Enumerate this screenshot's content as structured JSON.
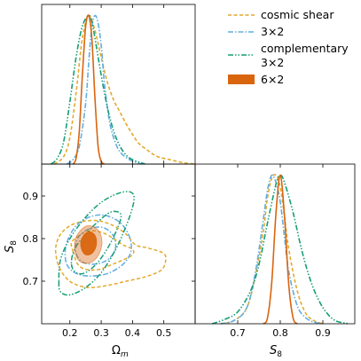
{
  "chart_data": {
    "type": "corner",
    "legend_position": "top-right",
    "legend": [
      {
        "label": "cosmic shear",
        "color": "#e3a92c",
        "style": "dashed"
      },
      {
        "label": "3×2",
        "color": "#62aee0",
        "style": "dashdot"
      },
      {
        "label": "complementary",
        "label2": "3×2",
        "color": "#159e76",
        "style": "dashdotdot"
      },
      {
        "label": "6×2",
        "color": "#d9650f",
        "style": "filled"
      }
    ],
    "axes": {
      "omega_m": {
        "label": "Ω",
        "sub": "m",
        "range": [
          0.11,
          0.6
        ],
        "ticks": [
          0.2,
          0.3,
          0.4,
          0.5
        ],
        "tick_labels": [
          "0.2",
          "0.3",
          "0.4",
          "0.5"
        ]
      },
      "s8": {
        "label": "S",
        "sub": "8",
        "range": [
          0.6,
          0.975
        ],
        "ticks": [
          0.7,
          0.8,
          0.9
        ],
        "tick_labels": [
          "0.7",
          "0.8",
          "0.9"
        ]
      }
    },
    "omega_m_posteriors": [
      {
        "name": "cosmic shear",
        "color": "#e3a92c",
        "dash": "4,2.5",
        "x": [
          0.15,
          0.18,
          0.2,
          0.22,
          0.24,
          0.26,
          0.28,
          0.3,
          0.32,
          0.34,
          0.36,
          0.38,
          0.4,
          0.42,
          0.45,
          0.48,
          0.52,
          0.56,
          0.6
        ],
        "y": [
          0.0,
          0.05,
          0.18,
          0.48,
          0.85,
          1.0,
          0.9,
          0.72,
          0.55,
          0.43,
          0.35,
          0.27,
          0.2,
          0.14,
          0.09,
          0.05,
          0.03,
          0.01,
          0.0
        ]
      },
      {
        "name": "3×2",
        "color": "#62aee0",
        "dash": "6,2,1.5,2",
        "x": [
          0.19,
          0.21,
          0.23,
          0.25,
          0.26,
          0.27,
          0.28,
          0.29,
          0.3,
          0.31,
          0.32,
          0.33,
          0.35,
          0.37,
          0.4,
          0.43
        ],
        "y": [
          0.0,
          0.03,
          0.12,
          0.4,
          0.68,
          0.92,
          1.0,
          0.95,
          0.8,
          0.55,
          0.38,
          0.25,
          0.12,
          0.06,
          0.02,
          0.0
        ]
      },
      {
        "name": "complementary 3×2",
        "color": "#159e76",
        "dash": "6,2,1.5,2,1.5,2",
        "x": [
          0.14,
          0.16,
          0.18,
          0.2,
          0.22,
          0.24,
          0.26,
          0.27,
          0.28,
          0.3,
          0.32,
          0.34,
          0.36,
          0.38,
          0.4,
          0.44
        ],
        "y": [
          0.0,
          0.04,
          0.15,
          0.42,
          0.72,
          0.93,
          1.0,
          0.96,
          0.85,
          0.6,
          0.38,
          0.22,
          0.12,
          0.06,
          0.03,
          0.0
        ]
      },
      {
        "name": "6×2",
        "color": "#d9650f",
        "dash": "",
        "x": [
          0.21,
          0.22,
          0.23,
          0.24,
          0.25,
          0.26,
          0.27,
          0.28,
          0.29,
          0.3,
          0.31
        ],
        "y": [
          0.0,
          0.04,
          0.22,
          0.6,
          0.92,
          1.0,
          0.85,
          0.45,
          0.12,
          0.02,
          0.0
        ]
      }
    ],
    "s8_posteriors": [
      {
        "name": "cosmic shear",
        "color": "#e3a92c",
        "dash": "4,2.5",
        "x": [
          0.66,
          0.69,
          0.72,
          0.74,
          0.76,
          0.77,
          0.78,
          0.79,
          0.8,
          0.81,
          0.82,
          0.84,
          0.86,
          0.88,
          0.9
        ],
        "y": [
          0.0,
          0.02,
          0.1,
          0.3,
          0.62,
          0.85,
          0.98,
          1.0,
          0.92,
          0.72,
          0.5,
          0.22,
          0.07,
          0.02,
          0.0
        ]
      },
      {
        "name": "3×2",
        "color": "#62aee0",
        "dash": "6,2,1.5,2",
        "x": [
          0.66,
          0.69,
          0.72,
          0.74,
          0.76,
          0.77,
          0.78,
          0.79,
          0.8,
          0.81,
          0.82,
          0.84,
          0.86,
          0.88,
          0.9
        ],
        "y": [
          0.0,
          0.02,
          0.1,
          0.32,
          0.7,
          0.9,
          1.0,
          0.95,
          0.82,
          0.58,
          0.35,
          0.12,
          0.04,
          0.01,
          0.0
        ]
      },
      {
        "name": "complementary 3×2",
        "color": "#159e76",
        "dash": "6,2,1.5,2,1.5,2",
        "x": [
          0.64,
          0.67,
          0.7,
          0.73,
          0.75,
          0.77,
          0.79,
          0.8,
          0.81,
          0.83,
          0.85,
          0.87,
          0.89,
          0.91,
          0.93,
          0.96
        ],
        "y": [
          0.0,
          0.03,
          0.08,
          0.22,
          0.4,
          0.68,
          0.94,
          1.0,
          0.95,
          0.75,
          0.5,
          0.3,
          0.16,
          0.07,
          0.02,
          0.0
        ]
      },
      {
        "name": "6×2",
        "color": "#d9650f",
        "dash": "",
        "x": [
          0.76,
          0.77,
          0.78,
          0.79,
          0.8,
          0.81,
          0.82,
          0.83,
          0.84
        ],
        "y": [
          0.0,
          0.04,
          0.28,
          0.75,
          1.0,
          0.72,
          0.26,
          0.04,
          0.0
        ]
      }
    ],
    "contours": [
      {
        "name": "cosmic shear",
        "level": "95%",
        "color": "#e3a92c",
        "dash": "4,2.5",
        "fill": false,
        "points": [
          [
            0.16,
            0.745
          ],
          [
            0.18,
            0.715
          ],
          [
            0.21,
            0.695
          ],
          [
            0.26,
            0.685
          ],
          [
            0.32,
            0.69
          ],
          [
            0.38,
            0.7
          ],
          [
            0.44,
            0.71
          ],
          [
            0.49,
            0.725
          ],
          [
            0.505,
            0.745
          ],
          [
            0.5,
            0.765
          ],
          [
            0.45,
            0.778
          ],
          [
            0.41,
            0.785
          ],
          [
            0.38,
            0.81
          ],
          [
            0.34,
            0.83
          ],
          [
            0.29,
            0.842
          ],
          [
            0.24,
            0.84
          ],
          [
            0.2,
            0.83
          ],
          [
            0.17,
            0.81
          ],
          [
            0.155,
            0.78
          ]
        ]
      },
      {
        "name": "cosmic shear",
        "level": "68%",
        "color": "#e3a92c",
        "dash": "4,2.5",
        "fill": false,
        "points": [
          [
            0.21,
            0.77
          ],
          [
            0.225,
            0.74
          ],
          [
            0.25,
            0.728
          ],
          [
            0.29,
            0.727
          ],
          [
            0.33,
            0.738
          ],
          [
            0.37,
            0.75
          ],
          [
            0.4,
            0.762
          ],
          [
            0.4,
            0.775
          ],
          [
            0.37,
            0.785
          ],
          [
            0.34,
            0.8
          ],
          [
            0.3,
            0.815
          ],
          [
            0.26,
            0.818
          ],
          [
            0.225,
            0.805
          ],
          [
            0.205,
            0.79
          ]
        ]
      },
      {
        "name": "3×2",
        "level": "95%",
        "color": "#62aee0",
        "dash": "6,2,1.5,2",
        "fill": false,
        "points": [
          [
            0.19,
            0.74
          ],
          [
            0.215,
            0.72
          ],
          [
            0.26,
            0.712
          ],
          [
            0.32,
            0.718
          ],
          [
            0.37,
            0.74
          ],
          [
            0.395,
            0.77
          ],
          [
            0.39,
            0.805
          ],
          [
            0.36,
            0.838
          ],
          [
            0.31,
            0.855
          ],
          [
            0.26,
            0.85
          ],
          [
            0.22,
            0.83
          ],
          [
            0.195,
            0.8
          ],
          [
            0.185,
            0.77
          ]
        ]
      },
      {
        "name": "3×2",
        "level": "68%",
        "color": "#62aee0",
        "dash": "6,2,1.5,2",
        "fill": false,
        "points": [
          [
            0.22,
            0.765
          ],
          [
            0.24,
            0.745
          ],
          [
            0.28,
            0.74
          ],
          [
            0.32,
            0.75
          ],
          [
            0.345,
            0.775
          ],
          [
            0.34,
            0.805
          ],
          [
            0.31,
            0.825
          ],
          [
            0.27,
            0.825
          ],
          [
            0.235,
            0.81
          ],
          [
            0.22,
            0.79
          ]
        ]
      },
      {
        "name": "complementary 3×2",
        "level": "95%",
        "color": "#159e76",
        "dash": "6,2,1.5,2,1.5,2",
        "fill": false,
        "points": [
          [
            0.165,
            0.7
          ],
          [
            0.17,
            0.675
          ],
          [
            0.2,
            0.668
          ],
          [
            0.25,
            0.685
          ],
          [
            0.3,
            0.72
          ],
          [
            0.35,
            0.78
          ],
          [
            0.39,
            0.85
          ],
          [
            0.405,
            0.895
          ],
          [
            0.39,
            0.91
          ],
          [
            0.35,
            0.905
          ],
          [
            0.3,
            0.885
          ],
          [
            0.25,
            0.85
          ],
          [
            0.2,
            0.8
          ],
          [
            0.17,
            0.75
          ]
        ]
      },
      {
        "name": "complementary 3×2",
        "level": "68%",
        "color": "#159e76",
        "dash": "6,2,1.5,2,1.5,2",
        "fill": false,
        "points": [
          [
            0.205,
            0.74
          ],
          [
            0.22,
            0.72
          ],
          [
            0.25,
            0.72
          ],
          [
            0.29,
            0.745
          ],
          [
            0.33,
            0.79
          ],
          [
            0.36,
            0.84
          ],
          [
            0.36,
            0.86
          ],
          [
            0.33,
            0.862
          ],
          [
            0.29,
            0.84
          ],
          [
            0.25,
            0.81
          ],
          [
            0.215,
            0.775
          ]
        ]
      },
      {
        "name": "6×2",
        "level": "95%",
        "color": "#d9650f",
        "dash": "",
        "fill": true,
        "opacity": 0.4,
        "points": [
          [
            0.215,
            0.775
          ],
          [
            0.225,
            0.752
          ],
          [
            0.245,
            0.742
          ],
          [
            0.27,
            0.745
          ],
          [
            0.29,
            0.76
          ],
          [
            0.302,
            0.785
          ],
          [
            0.298,
            0.81
          ],
          [
            0.28,
            0.826
          ],
          [
            0.255,
            0.83
          ],
          [
            0.235,
            0.82
          ],
          [
            0.218,
            0.8
          ]
        ]
      },
      {
        "name": "6×2",
        "level": "68%",
        "color": "#d9650f",
        "dash": "",
        "fill": true,
        "opacity": 0.95,
        "points": [
          [
            0.235,
            0.782
          ],
          [
            0.245,
            0.765
          ],
          [
            0.262,
            0.762
          ],
          [
            0.278,
            0.772
          ],
          [
            0.285,
            0.79
          ],
          [
            0.28,
            0.808
          ],
          [
            0.264,
            0.816
          ],
          [
            0.247,
            0.81
          ],
          [
            0.237,
            0.797
          ]
        ]
      }
    ]
  }
}
